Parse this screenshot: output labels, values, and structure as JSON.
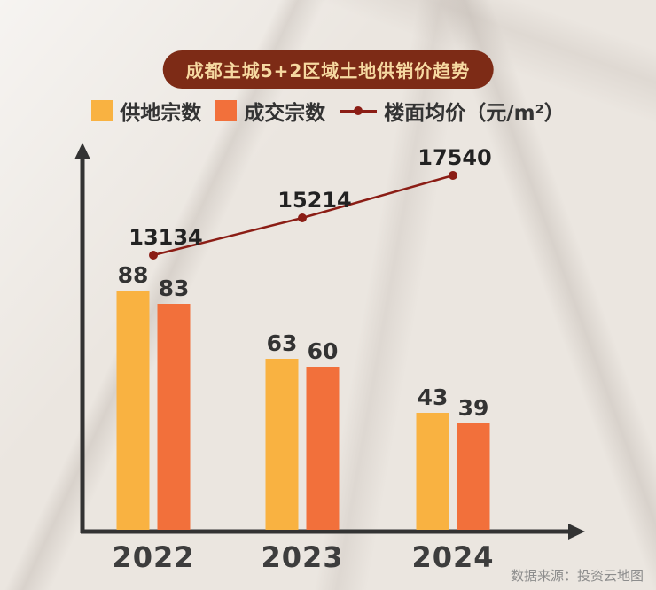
{
  "title": "成都主城5+2区域土地供销价趋势",
  "source": "数据来源：投资云地图",
  "legend": [
    {
      "name": "supply-count",
      "label": "供地宗数",
      "color": "#F9B241",
      "swatch": "square"
    },
    {
      "name": "deal-count",
      "label": "成交宗数",
      "color": "#F2703B",
      "swatch": "square"
    },
    {
      "name": "avg-floor-price",
      "label": "楼面均价（元/m²）",
      "color": "#8B1D15",
      "swatch": "line-dot"
    }
  ],
  "chart_data": {
    "type": "bar",
    "title": "成都主城5+2区域土地供销价趋势",
    "categories": [
      "2022",
      "2023",
      "2024"
    ],
    "series": [
      {
        "name": "供地宗数",
        "type": "bar",
        "color": "#F9B241",
        "values": [
          88,
          63,
          43
        ]
      },
      {
        "name": "成交宗数",
        "type": "bar",
        "color": "#F2703B",
        "values": [
          83,
          60,
          39
        ]
      },
      {
        "name": "楼面均价（元/m²）",
        "type": "line",
        "color": "#8B1D15",
        "values": [
          13134,
          15214,
          17540
        ]
      }
    ],
    "xlabel": "",
    "ylabel": "",
    "bar_ylim": [
      0,
      100
    ],
    "line_ylim": [
      0,
      20000
    ],
    "grid": false,
    "legend_position": "top"
  },
  "colors": {
    "background": "#EBE6E0",
    "title_bg": "#7D2B16",
    "title_text": "#F6D9A1",
    "bar1": "#F9B241",
    "bar2": "#F2703B",
    "line": "#8B1D15",
    "axis": "#333333",
    "label_text": "#333333",
    "source_text": "#8D8D8D"
  }
}
